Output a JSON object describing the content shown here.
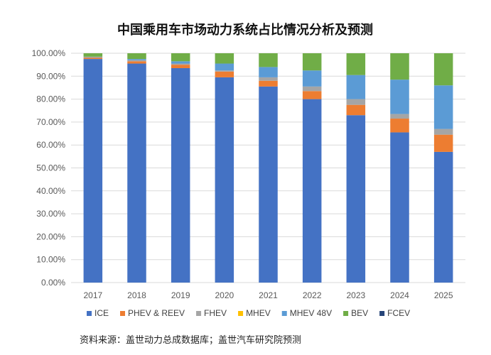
{
  "chart_data": {
    "type": "bar",
    "stacked": true,
    "title": "中国乘用车市场动力系统占比情况分析及预测",
    "xlabel": "",
    "ylabel": "",
    "ylim": [
      0,
      100
    ],
    "y_ticks": [
      "0.00%",
      "10.00%",
      "20.00%",
      "30.00%",
      "40.00%",
      "50.00%",
      "60.00%",
      "70.00%",
      "80.00%",
      "90.00%",
      "100.00%"
    ],
    "grid": true,
    "legend_position": "bottom",
    "categories": [
      "2017",
      "2018",
      "2019",
      "2020",
      "2021",
      "2022",
      "2023",
      "2024",
      "2025"
    ],
    "series": [
      {
        "name": "ICE",
        "color": "#4472C4",
        "values": [
          97.5,
          95.5,
          93.5,
          89.5,
          85.5,
          80.0,
          73.0,
          65.5,
          57.0
        ]
      },
      {
        "name": "PHEV & REEV",
        "color": "#ED7D31",
        "values": [
          0.5,
          1.0,
          1.5,
          2.5,
          2.5,
          3.5,
          4.5,
          6.0,
          7.5
        ]
      },
      {
        "name": "FHEV",
        "color": "#A5A5A5",
        "values": [
          0.5,
          0.5,
          0.5,
          0.5,
          1.5,
          2.0,
          2.5,
          2.0,
          2.5
        ]
      },
      {
        "name": "MHEV",
        "color": "#FFC000",
        "values": [
          0,
          0,
          0,
          0,
          0,
          0,
          0,
          0,
          0
        ]
      },
      {
        "name": "MHEV 48V",
        "color": "#5B9BD5",
        "values": [
          0,
          0.5,
          1.0,
          3.0,
          4.5,
          7.0,
          10.5,
          15.0,
          19.0
        ]
      },
      {
        "name": "BEV",
        "color": "#70AD47",
        "values": [
          1.5,
          2.5,
          3.5,
          4.5,
          6.0,
          7.5,
          9.5,
          11.5,
          14.0
        ]
      },
      {
        "name": "FCEV",
        "color": "#264478",
        "values": [
          0,
          0,
          0,
          0,
          0,
          0,
          0,
          0,
          0
        ]
      }
    ],
    "source_note": "资料来源：盖世动力总成数据库；盖世汽车研究院预测"
  }
}
